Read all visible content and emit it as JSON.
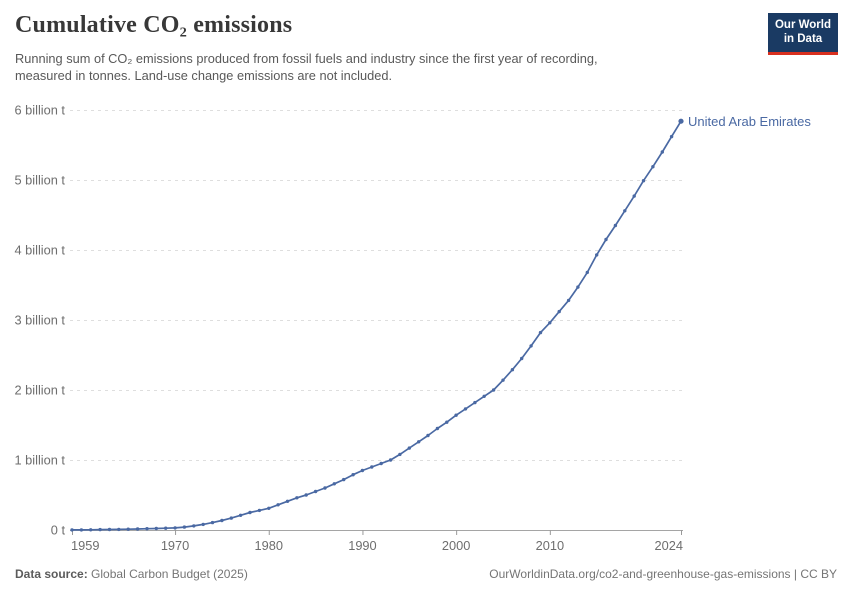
{
  "header": {
    "title": "Cumulative CO₂ emissions",
    "subtitle": "Running sum of CO₂ emissions produced from fossil fuels and industry since the first year of recording,\nmeasured in tonnes. Land-use change emissions are not included.",
    "logo": {
      "line1": "Our World",
      "line2": "in Data"
    }
  },
  "chart_data": {
    "type": "line",
    "title": "Cumulative CO₂ emissions",
    "entity": "United Arab Emirates",
    "unit": "tonnes",
    "ylabel": "",
    "xlabel": "",
    "xlim": [
      1959,
      2024
    ],
    "ylim_billion_tonnes": [
      0,
      6
    ],
    "grid": "horizontal-dashed",
    "legend_position": "end-of-line-label",
    "line_color": "#4a69a3",
    "xticks": [
      1959,
      1970,
      1980,
      1990,
      2000,
      2010,
      2024
    ],
    "yticks": [
      {
        "value": 0,
        "label": "0 t"
      },
      {
        "value": 1,
        "label": "1 billion t"
      },
      {
        "value": 2,
        "label": "2 billion t"
      },
      {
        "value": 3,
        "label": "3 billion t"
      },
      {
        "value": 4,
        "label": "4 billion t"
      },
      {
        "value": 5,
        "label": "5 billion t"
      },
      {
        "value": 6,
        "label": "6 billion t"
      }
    ],
    "x": [
      1959,
      1960,
      1961,
      1962,
      1963,
      1964,
      1965,
      1966,
      1967,
      1968,
      1969,
      1970,
      1971,
      1972,
      1973,
      1974,
      1975,
      1976,
      1977,
      1978,
      1979,
      1980,
      1981,
      1982,
      1983,
      1984,
      1985,
      1986,
      1987,
      1988,
      1989,
      1990,
      1991,
      1992,
      1993,
      1994,
      1995,
      1996,
      1997,
      1998,
      1999,
      2000,
      2001,
      2002,
      2003,
      2004,
      2005,
      2006,
      2007,
      2008,
      2009,
      2010,
      2011,
      2012,
      2013,
      2014,
      2015,
      2016,
      2017,
      2018,
      2019,
      2020,
      2021,
      2022,
      2023,
      2024
    ],
    "values_billion_tonnes": [
      0.001,
      0.002,
      0.003,
      0.005,
      0.007,
      0.009,
      0.012,
      0.015,
      0.018,
      0.022,
      0.026,
      0.03,
      0.042,
      0.058,
      0.08,
      0.105,
      0.135,
      0.17,
      0.21,
      0.25,
      0.28,
      0.31,
      0.36,
      0.41,
      0.46,
      0.5,
      0.55,
      0.6,
      0.66,
      0.72,
      0.79,
      0.85,
      0.9,
      0.95,
      1.0,
      1.08,
      1.17,
      1.26,
      1.35,
      1.45,
      1.54,
      1.64,
      1.73,
      1.82,
      1.91,
      2.0,
      2.14,
      2.29,
      2.45,
      2.63,
      2.82,
      2.96,
      3.12,
      3.28,
      3.47,
      3.68,
      3.93,
      4.15,
      4.35,
      4.56,
      4.77,
      4.99,
      5.19,
      5.4,
      5.62,
      5.84
    ]
  },
  "footer": {
    "source_label": "Data source:",
    "source_value": "Global Carbon Budget (2025)",
    "link": "OurWorldinData.org/co2-and-greenhouse-gas-emissions | CC BY"
  },
  "colors": {
    "series_line": "#4a69a3",
    "logo_background": "#1a3a63",
    "logo_stripe": "#d8301f",
    "gridline": "#dedede",
    "axis_line": "#a5a5a5",
    "tick_text": "#6e6e6e",
    "title_text": "#383838",
    "subtitle_text": "#595959"
  }
}
